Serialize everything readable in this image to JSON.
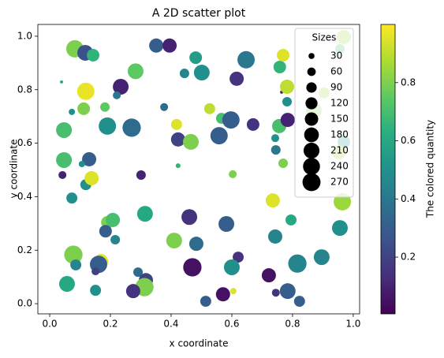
{
  "chart_data": {
    "type": "scatter",
    "title": "A 2D scatter plot",
    "x_label": "x coordinate",
    "y_label": "y coordinate",
    "colorbar_label": "The colored quantity",
    "colormap": "viridis",
    "clim": [
      0.005,
      1.0
    ],
    "colorbar_ticks": [
      0.2,
      0.4,
      0.6,
      0.8
    ],
    "xlim": [
      -0.039,
      1.021
    ],
    "ylim": [
      -0.038,
      1.044
    ],
    "xticks": [
      {
        "value": 0,
        "label": "0.0"
      },
      {
        "value": 0.2,
        "label": "0.2"
      },
      {
        "value": 0.4,
        "label": "0.4"
      },
      {
        "value": 0.6,
        "label": "0.6"
      },
      {
        "value": 0.8,
        "label": "0.8"
      },
      {
        "value": 1,
        "label": "1.0"
      }
    ],
    "yticks": [
      {
        "value": 0,
        "label": "0.0"
      },
      {
        "value": 0.2,
        "label": "0.2"
      },
      {
        "value": 0.4,
        "label": "0.4"
      },
      {
        "value": 0.6,
        "label": "0.6"
      },
      {
        "value": 0.8,
        "label": "0.8"
      },
      {
        "value": 1,
        "label": "1.0"
      }
    ],
    "legend_loc": "upper right",
    "size_legend": {
      "title": "Sizes",
      "values": [
        30,
        60,
        90,
        120,
        150,
        180,
        210,
        240,
        270
      ]
    },
    "x": [
      0.083,
      0.117,
      0.143,
      0.351,
      0.395,
      0.481,
      0.647,
      0.283,
      0.444,
      0.501,
      0.616,
      0.234,
      0.119,
      0.221,
      0.039,
      0.112,
      0.182,
      0.377,
      0.527,
      0.073,
      0.047,
      0.19,
      0.27,
      0.418,
      0.566,
      0.597,
      0.67,
      0.423,
      0.465,
      0.558,
      0.743,
      0.745,
      0.756,
      0.784,
      0.782,
      0.764,
      0.758,
      0.769,
      0.904,
      0.87,
      0.047,
      0.13,
      0.042,
      0.106,
      0.119,
      0.138,
      0.301,
      0.423,
      0.603,
      0.769,
      0.073,
      0.735,
      0.964,
      0.19,
      0.208,
      0.184,
      0.216,
      0.314,
      0.46,
      0.582,
      0.795,
      0.41,
      0.483,
      0.743,
      0.956,
      0.078,
      0.169,
      0.161,
      0.086,
      0.151,
      0.291,
      0.317,
      0.312,
      0.275,
      0.47,
      0.621,
      0.6,
      0.896,
      0.816,
      0.722,
      0.055,
      0.057,
      0.151,
      0.514,
      0.571,
      0.605,
      0.745,
      0.784,
      0.823,
      0.969,
      0.956,
      0.782,
      0.969,
      0.953
    ],
    "y": [
      0.953,
      0.938,
      0.929,
      0.965,
      0.965,
      0.92,
      0.912,
      0.869,
      0.861,
      0.864,
      0.841,
      0.811,
      0.794,
      0.779,
      0.829,
      0.729,
      0.735,
      0.735,
      0.729,
      0.717,
      0.649,
      0.664,
      0.658,
      0.67,
      0.693,
      0.687,
      0.67,
      0.614,
      0.605,
      0.628,
      0.619,
      0.575,
      0.664,
      0.687,
      0.755,
      0.791,
      0.885,
      0.929,
      0.788,
      0.723,
      0.537,
      0.54,
      0.481,
      0.522,
      0.445,
      0.469,
      0.481,
      0.516,
      0.484,
      0.525,
      0.395,
      0.386,
      0.381,
      0.304,
      0.313,
      0.271,
      0.239,
      0.336,
      0.324,
      0.298,
      0.313,
      0.236,
      0.224,
      0.251,
      0.283,
      0.183,
      0.159,
      0.147,
      0.145,
      0.121,
      0.118,
      0.088,
      0.062,
      0.047,
      0.136,
      0.174,
      0.136,
      0.174,
      0.15,
      0.106,
      0.08,
      0.074,
      0.05,
      0.009,
      0.035,
      0.047,
      0.041,
      0.047,
      0.009,
      0.997,
      0.953,
      0.811,
      0.605,
      0.566
    ],
    "sizes": [
      250,
      207,
      132,
      168,
      168,
      132,
      250,
      207,
      75,
      207,
      168,
      207,
      250,
      52,
      8,
      132,
      75,
      52,
      101,
      33,
      207,
      250,
      280,
      101,
      101,
      250,
      132,
      168,
      207,
      250,
      52,
      75,
      168,
      168,
      75,
      8,
      132,
      132,
      101,
      207,
      207,
      168,
      52,
      33,
      101,
      168,
      75,
      19,
      52,
      75,
      101,
      168,
      250,
      132,
      168,
      132,
      75,
      207,
      207,
      207,
      101,
      207,
      168,
      168,
      207,
      280,
      168,
      250,
      101,
      52,
      75,
      168,
      280,
      168,
      280,
      101,
      207,
      207,
      280,
      168,
      101,
      207,
      101,
      101,
      168,
      33,
      52,
      207,
      101,
      168,
      75,
      168,
      132,
      168
    ],
    "c": [
      0.8,
      0.25,
      0.65,
      0.3,
      0.1,
      0.55,
      0.4,
      0.75,
      0.45,
      0.5,
      0.15,
      0.1,
      0.97,
      0.4,
      0.6,
      0.8,
      0.75,
      0.35,
      0.9,
      0.5,
      0.7,
      0.5,
      0.35,
      0.95,
      0.7,
      0.3,
      0.15,
      0.2,
      0.8,
      0.3,
      0.5,
      0.4,
      0.7,
      0.1,
      0.5,
      0.1,
      0.65,
      0.95,
      0.85,
      0.8,
      0.7,
      0.3,
      0.1,
      0.5,
      0.5,
      0.95,
      0.1,
      0.65,
      0.8,
      0.8,
      0.5,
      0.95,
      0.85,
      0.8,
      0.7,
      0.3,
      0.45,
      0.6,
      0.15,
      0.3,
      0.6,
      0.8,
      0.35,
      0.45,
      0.5,
      0.8,
      0.95,
      0.3,
      0.45,
      0.2,
      0.35,
      0.2,
      0.8,
      0.15,
      0.05,
      0.15,
      0.5,
      0.45,
      0.45,
      0.05,
      0.3,
      0.6,
      0.5,
      0.3,
      0.05,
      0.95,
      0.15,
      0.3,
      0.3,
      0.85,
      0.7,
      0.9,
      0.5,
      0.85
    ]
  }
}
